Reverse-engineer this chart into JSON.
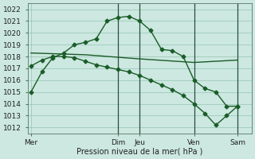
{
  "bg_color": "#cce8e0",
  "grid_color": "#88bbaa",
  "line_color": "#1a5c28",
  "xlabel": "Pression niveau de la mer( hPa )",
  "xtick_labels": [
    "Mer",
    "Dim",
    "Jeu",
    "Ven",
    "Sam"
  ],
  "xtick_positions": [
    0,
    8,
    10,
    15,
    19
  ],
  "xlim": [
    -0.3,
    20.3
  ],
  "ylim": [
    1011.5,
    1022.5
  ],
  "yticks": [
    1012,
    1013,
    1014,
    1015,
    1016,
    1017,
    1018,
    1019,
    1020,
    1021,
    1022
  ],
  "line1_x": [
    0,
    1,
    2,
    3,
    4,
    5,
    6,
    7,
    8,
    9,
    10,
    11,
    12,
    13,
    14,
    15,
    16,
    17,
    18,
    19
  ],
  "line1_y": [
    1015.0,
    1016.7,
    1017.9,
    1018.3,
    1019.0,
    1019.2,
    1019.5,
    1021.0,
    1021.3,
    1021.4,
    1021.0,
    1020.2,
    1018.6,
    1018.5,
    1018.0,
    1016.0,
    1015.3,
    1015.0,
    1013.8,
    1013.8
  ],
  "line2_x": [
    0,
    5,
    10,
    15,
    19
  ],
  "line2_y": [
    1018.3,
    1018.15,
    1017.8,
    1017.5,
    1017.7
  ],
  "line3_x": [
    0,
    1,
    2,
    3,
    4,
    5,
    6,
    7,
    8,
    9,
    10,
    11,
    12,
    13,
    14,
    15,
    16,
    17,
    18,
    19
  ],
  "line3_y": [
    1017.2,
    1017.7,
    1018.0,
    1018.0,
    1017.9,
    1017.6,
    1017.3,
    1017.1,
    1016.9,
    1016.7,
    1016.4,
    1016.0,
    1015.6,
    1015.2,
    1014.7,
    1014.0,
    1013.2,
    1012.2,
    1013.0,
    1013.8
  ],
  "vline_positions": [
    8,
    10,
    15,
    19
  ],
  "marker_size": 2.5,
  "linewidth": 1.0,
  "xlabel_fontsize": 7,
  "tick_fontsize": 6.5
}
